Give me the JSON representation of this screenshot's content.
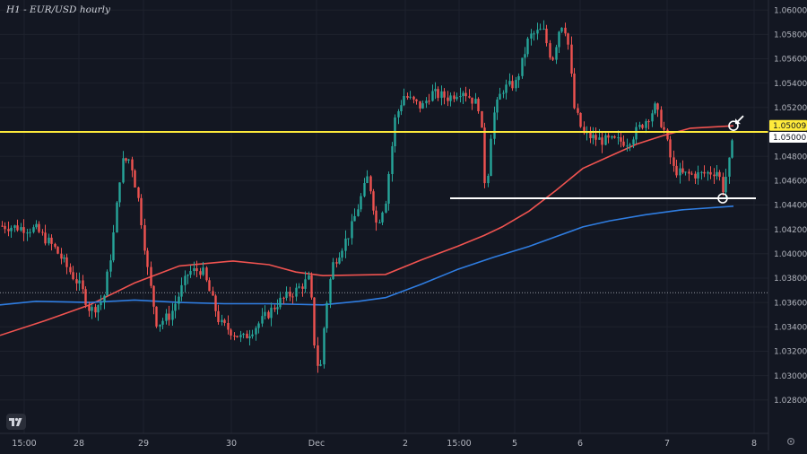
{
  "header": {
    "title": "H1 - EUR/USD hourly"
  },
  "chart_data": {
    "type": "candlestick",
    "instrument": "EUR/USD",
    "timeframe": "hourly",
    "title": "H1 - EUR/USD hourly",
    "ylim": [
      1.0271,
      1.0606
    ],
    "y_ticks": [
      "1.06000",
      "1.05800",
      "1.05600",
      "1.05400",
      "1.05200",
      "1.04800",
      "1.04600",
      "1.04400",
      "1.04200",
      "1.04000",
      "1.03800",
      "1.03600",
      "1.03400",
      "1.03200",
      "1.03000",
      "1.02800"
    ],
    "x_ticks": [
      "15:00",
      "28",
      "29",
      "30",
      "Dec",
      "2",
      "15:00",
      "5",
      "6",
      "7",
      "8"
    ],
    "highlighted_x_tick": "Dec",
    "price_labels": [
      {
        "value": "1.05009",
        "color": "#ffeb3b",
        "text_color": "#131722"
      },
      {
        "value": "1.05000",
        "color": "#ffffff",
        "text_color": "#131722"
      }
    ],
    "horizontal_lines": [
      {
        "level": 1.05,
        "color": "#ffeb3b",
        "style": "solid",
        "span": "full"
      },
      {
        "level": 1.04455,
        "color": "#ffffff",
        "style": "solid",
        "span": "Dec 2 to Dec 7"
      },
      {
        "level": 1.0368,
        "color": "#b2b5be",
        "style": "dotted",
        "span": "full"
      }
    ],
    "moving_averages": [
      {
        "color": "#f05350",
        "points": [
          [
            0,
            1.0333
          ],
          [
            50,
            1.0345
          ],
          [
            100,
            1.0358
          ],
          [
            150,
            1.0376
          ],
          [
            200,
            1.039
          ],
          [
            260,
            1.0394
          ],
          [
            300,
            1.0391
          ],
          [
            330,
            1.0385
          ],
          [
            360,
            1.0382
          ],
          [
            430,
            1.0383
          ],
          [
            470,
            1.0395
          ],
          [
            510,
            1.0406
          ],
          [
            540,
            1.0415
          ],
          [
            560,
            1.0422
          ],
          [
            590,
            1.0435
          ],
          [
            620,
            1.0452
          ],
          [
            650,
            1.047
          ],
          [
            680,
            1.048
          ],
          [
            710,
            1.049
          ],
          [
            740,
            1.0497
          ],
          [
            770,
            1.0503
          ],
          [
            818,
            1.0505
          ]
        ]
      },
      {
        "color": "#2f7de1",
        "points": [
          [
            0,
            1.0358
          ],
          [
            40,
            1.0361
          ],
          [
            100,
            1.036
          ],
          [
            150,
            1.0362
          ],
          [
            200,
            1.036
          ],
          [
            250,
            1.0359
          ],
          [
            300,
            1.0359
          ],
          [
            360,
            1.0358
          ],
          [
            400,
            1.0361
          ],
          [
            430,
            1.0364
          ],
          [
            470,
            1.0375
          ],
          [
            510,
            1.0387
          ],
          [
            550,
            1.0397
          ],
          [
            590,
            1.0406
          ],
          [
            620,
            1.0414
          ],
          [
            650,
            1.0422
          ],
          [
            680,
            1.0427
          ],
          [
            720,
            1.0432
          ],
          [
            760,
            1.0436
          ],
          [
            818,
            1.0439
          ]
        ]
      }
    ],
    "candle_path": [
      [
        0,
        1.0423
      ],
      [
        40,
        1.042
      ],
      [
        60,
        1.0405
      ],
      [
        90,
        1.0372
      ],
      [
        100,
        1.0353
      ],
      [
        115,
        1.0362
      ],
      [
        125,
        1.0408
      ],
      [
        135,
        1.0475
      ],
      [
        145,
        1.0478
      ],
      [
        155,
        1.044
      ],
      [
        165,
        1.0382
      ],
      [
        175,
        1.0342
      ],
      [
        190,
        1.035
      ],
      [
        200,
        1.0368
      ],
      [
        210,
        1.0385
      ],
      [
        225,
        1.0387
      ],
      [
        245,
        1.0343
      ],
      [
        270,
        1.033
      ],
      [
        290,
        1.0344
      ],
      [
        310,
        1.036
      ],
      [
        330,
        1.037
      ],
      [
        345,
        1.038
      ],
      [
        352,
        1.0312
      ],
      [
        357,
        1.0305
      ],
      [
        362,
        1.035
      ],
      [
        370,
        1.039
      ],
      [
        390,
        1.0418
      ],
      [
        410,
        1.0464
      ],
      [
        420,
        1.0423
      ],
      [
        430,
        1.0445
      ],
      [
        440,
        1.051
      ],
      [
        450,
        1.053
      ],
      [
        470,
        1.052
      ],
      [
        480,
        1.0532
      ],
      [
        500,
        1.0528
      ],
      [
        515,
        1.0535
      ],
      [
        535,
        1.052
      ],
      [
        540,
        1.046
      ],
      [
        545,
        1.047
      ],
      [
        548,
        1.051
      ],
      [
        560,
        1.0535
      ],
      [
        575,
        1.054
      ],
      [
        590,
        1.0578
      ],
      [
        605,
        1.0584
      ],
      [
        615,
        1.0558
      ],
      [
        625,
        1.059
      ],
      [
        632,
        1.0582
      ],
      [
        640,
        1.052
      ],
      [
        650,
        1.0498
      ],
      [
        670,
        1.0493
      ],
      [
        700,
        1.0492
      ],
      [
        720,
        1.051
      ],
      [
        730,
        1.052
      ],
      [
        740,
        1.0502
      ],
      [
        750,
        1.047
      ],
      [
        760,
        1.0465
      ],
      [
        780,
        1.0465
      ],
      [
        800,
        1.0468
      ],
      [
        806,
        1.0453
      ],
      [
        812,
        1.0472
      ],
      [
        818,
        1.0496
      ]
    ],
    "annotations": [
      {
        "type": "circle",
        "near": "1.0505 at Dec 7 latest candle"
      },
      {
        "type": "circle",
        "near": "1.0445 at Dec 7 low"
      },
      {
        "type": "arrow",
        "direction": "down-left",
        "near": "1.0505 at Dec 7 latest candle"
      }
    ],
    "grid": true,
    "legend": "none"
  }
}
